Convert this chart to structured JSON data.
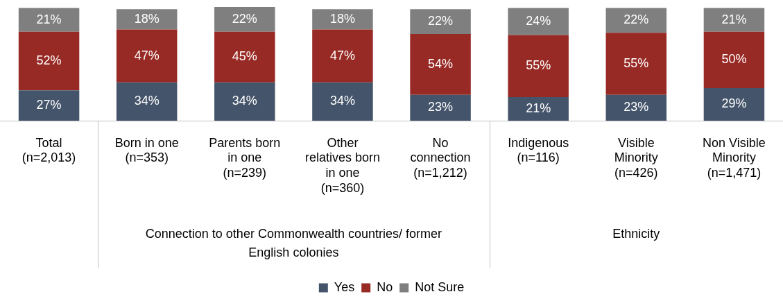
{
  "chart_data": {
    "type": "bar",
    "stacked": true,
    "grid": false,
    "legend": "bottom",
    "tick_labels": "x",
    "categories": [
      "Total\n(n=2,013)",
      "Born in one\n(n=353)",
      "Parents born\nin one\n(n=239)",
      "Other\nrelatives born\nin one\n(n=360)",
      "No\nconnection\n(n=1,212)",
      "Indigenous\n(n=116)",
      "Visible\nMinority\n(n=426)",
      "Non Visible\nMinority\n(n=1,471)"
    ],
    "series": [
      {
        "name": "Yes",
        "color": "#44546a",
        "values": [
          27,
          34,
          34,
          34,
          23,
          21,
          23,
          29
        ],
        "value_labels": [
          "27%",
          "34%",
          "34%",
          "34%",
          "23%",
          "21%",
          "23%",
          "29%"
        ]
      },
      {
        "name": "No",
        "color": "#982a25",
        "values": [
          52,
          47,
          45,
          47,
          54,
          55,
          55,
          50
        ],
        "value_labels": [
          "52%",
          "47%",
          "45%",
          "47%",
          "54%",
          "55%",
          "55%",
          "50%"
        ]
      },
      {
        "name": "Not Sure",
        "color": "#7f7f7f",
        "values": [
          21,
          18,
          22,
          18,
          22,
          24,
          22,
          21
        ],
        "value_labels": [
          "21%",
          "18%",
          "22%",
          "18%",
          "22%",
          "24%",
          "22%",
          "21%"
        ]
      }
    ],
    "annotations": [
      "Connection to other Commonwealth countries/ former\nEnglish colonies",
      "Ethnicity"
    ]
  }
}
